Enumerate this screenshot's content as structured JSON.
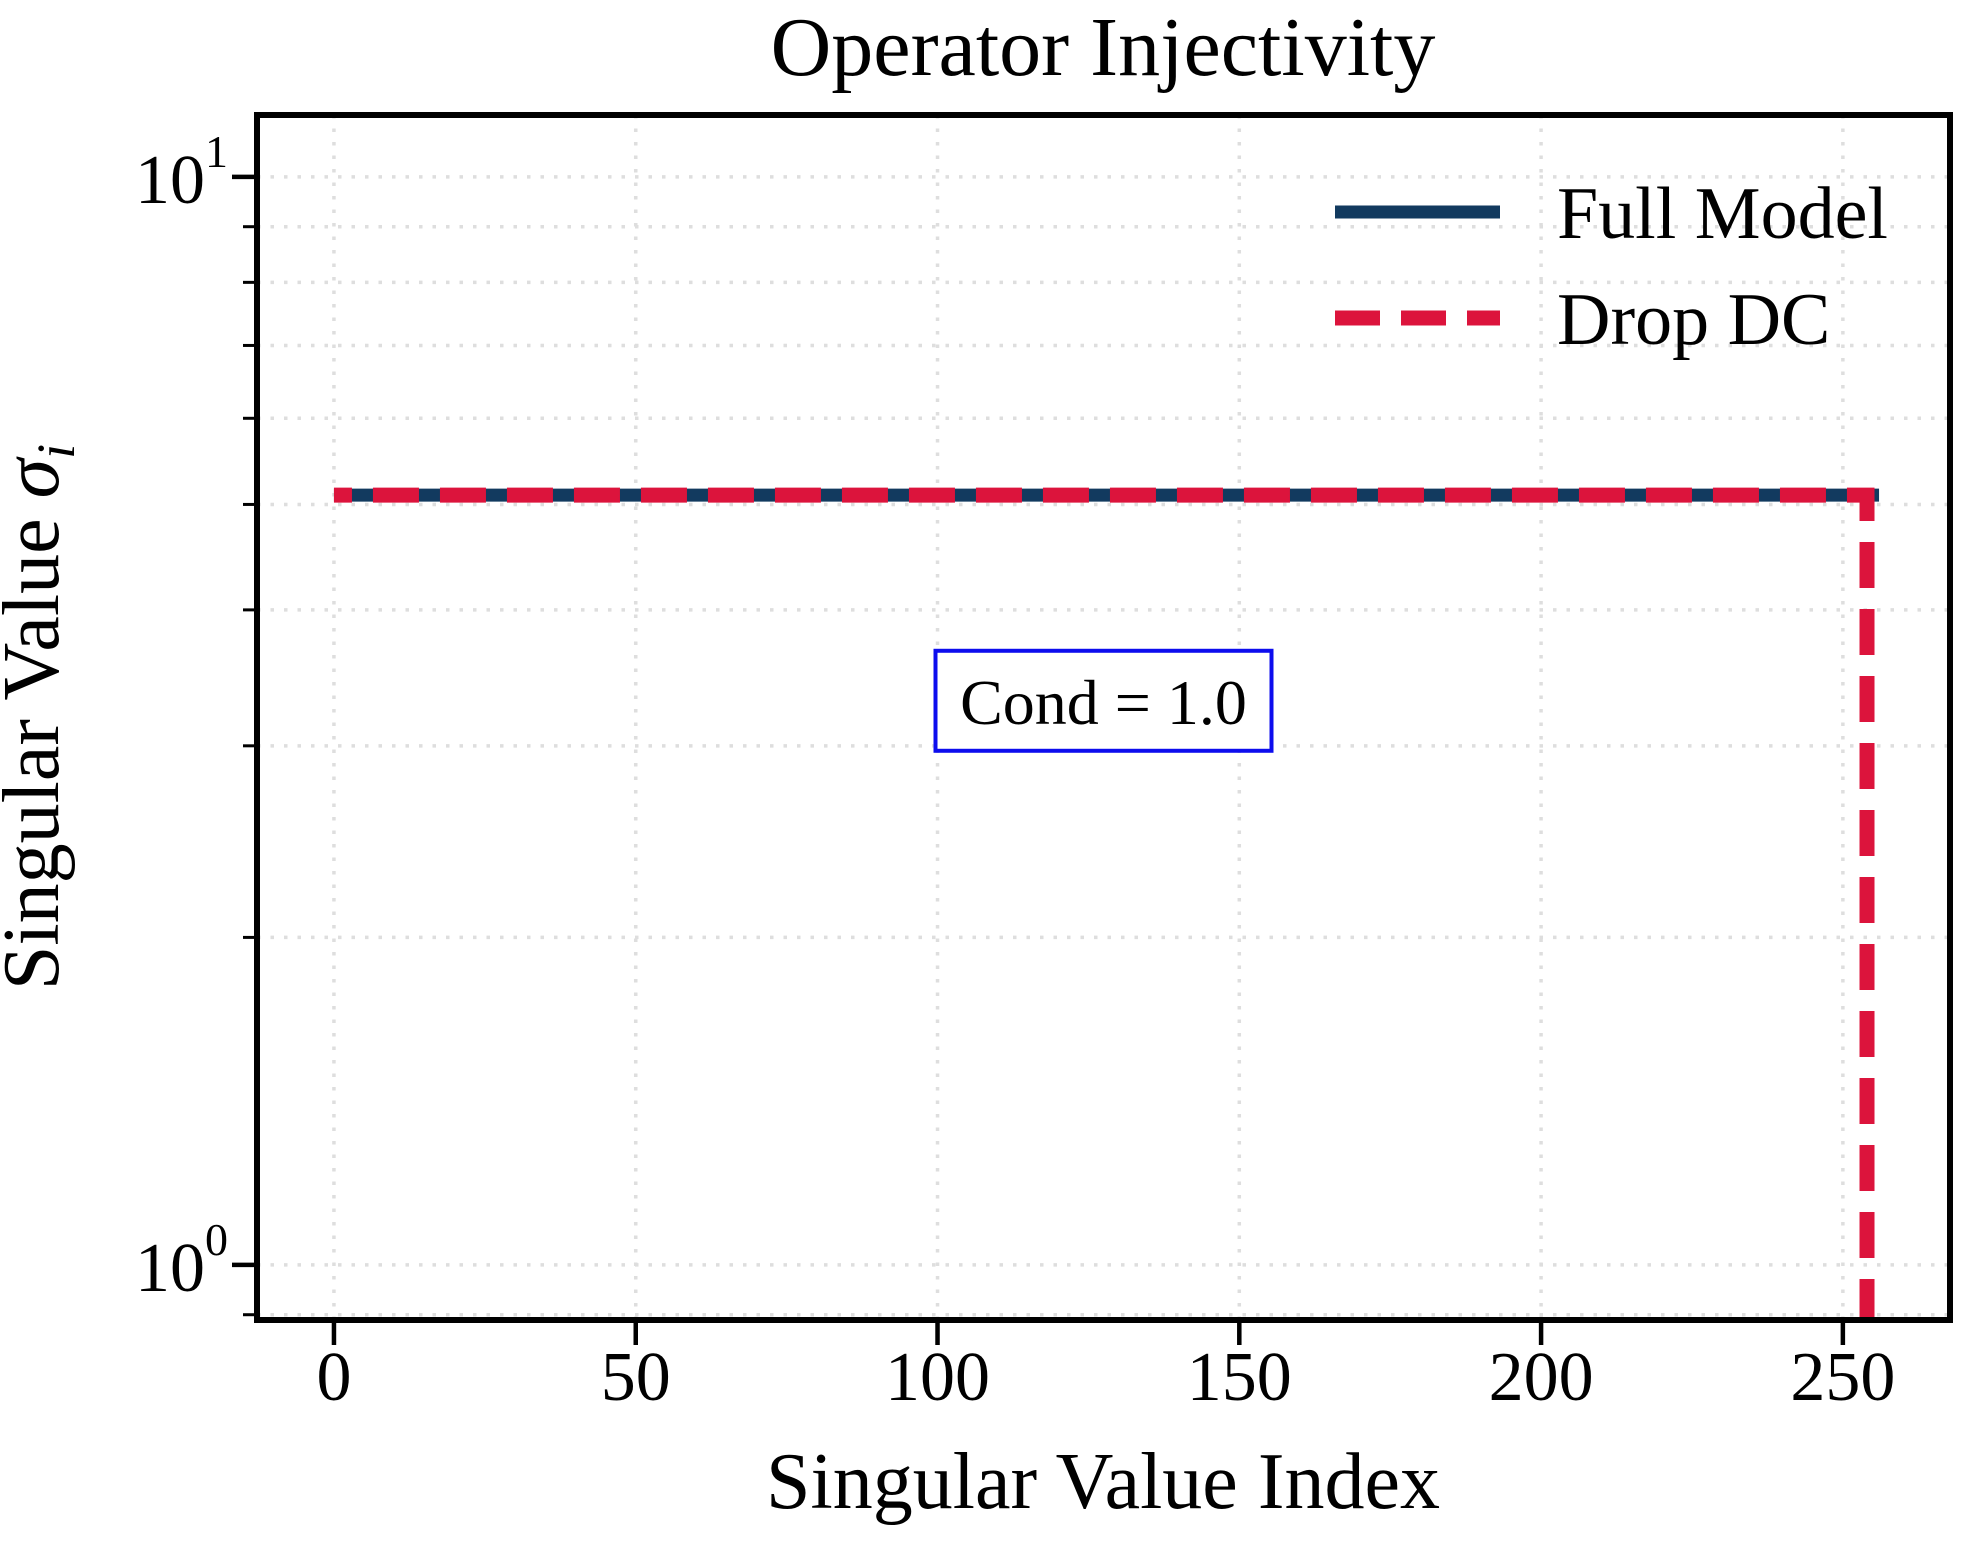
{
  "chart_data": {
    "type": "line",
    "title": "Operator Injectivity",
    "xlabel": "Singular Value Index",
    "ylabel": {
      "prefix": "Singular Value ",
      "symbol": "σ",
      "subscript": "i"
    },
    "ylabel_text": "Singular Value σᵢ",
    "xscale": "linear",
    "yscale": "log",
    "xlim": [
      -12.75,
      267.75
    ],
    "ylim": [
      0.89,
      11.4
    ],
    "x_ticks": [
      {
        "value": 0,
        "label": "0"
      },
      {
        "value": 50,
        "label": "50"
      },
      {
        "value": 100,
        "label": "100"
      },
      {
        "value": 150,
        "label": "150"
      },
      {
        "value": 200,
        "label": "200"
      },
      {
        "value": 250,
        "label": "250"
      }
    ],
    "y_major_ticks": [
      {
        "value": 10,
        "base": "10",
        "exponent": "1"
      },
      {
        "value": 1,
        "base": "10",
        "exponent": "0"
      }
    ],
    "y_minor_ticks": [
      9,
      8,
      7,
      6,
      5,
      4,
      3,
      2,
      0.9
    ],
    "grid": {
      "visible": true,
      "style": "dotted",
      "color": "#dedede",
      "x_values": [
        0,
        50,
        100,
        150,
        200,
        250
      ],
      "y_values": [
        10,
        9,
        8,
        7,
        6,
        5,
        4,
        3,
        2,
        1,
        0.9
      ]
    },
    "series": [
      {
        "name": "Full Model",
        "color": "#123a5f",
        "line_style": "solid",
        "line_width": 13,
        "flat_value": 5.1,
        "index_start": 0,
        "index_end": 255
      },
      {
        "name": "Drop DC",
        "color": "#dc143c",
        "line_style": "dashed",
        "dash_pattern": [
          46,
          21
        ],
        "line_width": 15,
        "flat_value": 5.1,
        "index_start": 0,
        "index_end": 254,
        "drop": {
          "at_index": 254,
          "to_value": 1e-06
        }
      }
    ],
    "legend": {
      "position": "upper right",
      "frame": false
    },
    "annotation": {
      "text": "Cond = 1.0",
      "x": 127.5,
      "y": 3.3,
      "border_color": "#0d0dee",
      "background": "#ffffff",
      "condition_number": 1.0
    }
  }
}
